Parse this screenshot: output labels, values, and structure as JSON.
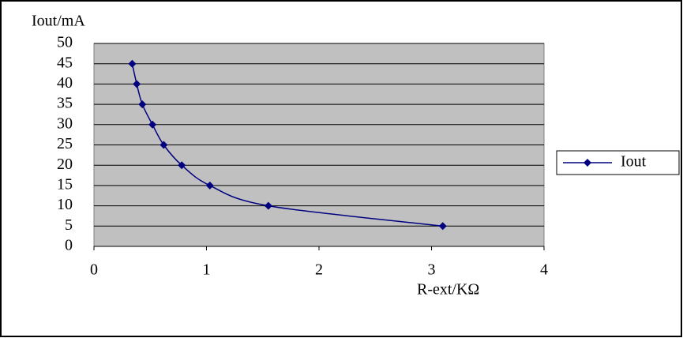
{
  "chart_data": {
    "type": "scatter",
    "y_label": "Iout/mA",
    "x_label": "R-ext/KΩ",
    "series": [
      {
        "name": "Iout",
        "color": "#000080",
        "x": [
          0.34,
          0.38,
          0.43,
          0.52,
          0.62,
          0.78,
          1.03,
          1.55,
          3.1
        ],
        "values": [
          45,
          40,
          35,
          30,
          25,
          20,
          15,
          10,
          5
        ]
      }
    ],
    "xlim": [
      0,
      4
    ],
    "xticks": [
      0,
      1,
      2,
      3,
      4
    ],
    "ylim": [
      0,
      50
    ],
    "yticks": [
      0,
      5,
      10,
      15,
      20,
      25,
      30,
      35,
      40,
      45,
      50
    ],
    "grid": true,
    "smooth": true,
    "legend": "right",
    "plot_background": "#c0c0c0"
  }
}
